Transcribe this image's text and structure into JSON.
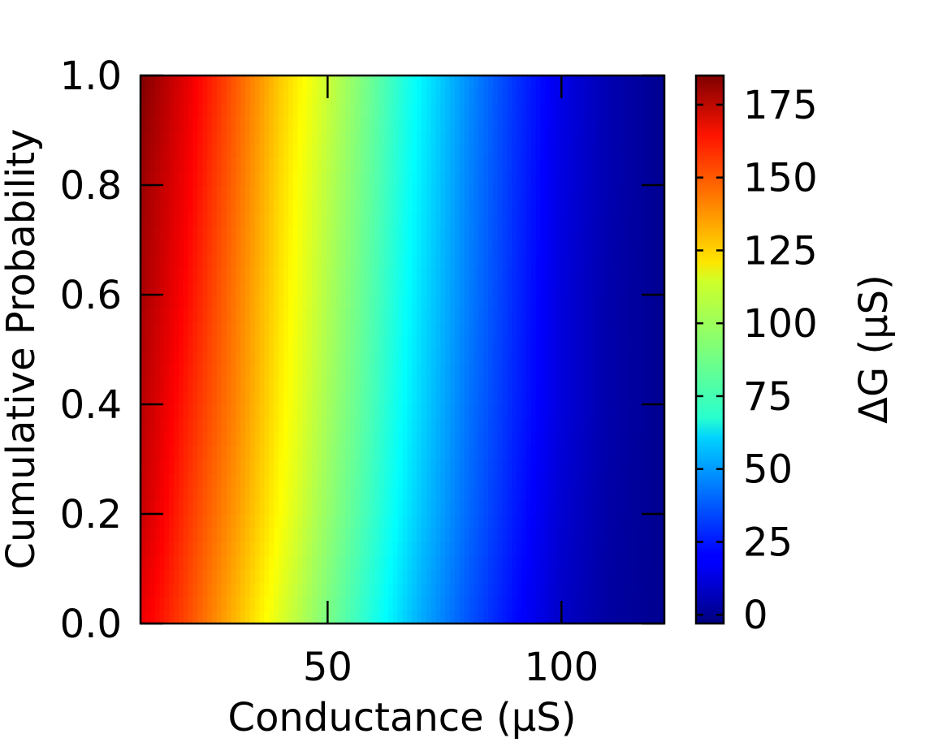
{
  "chart_data": {
    "type": "heatmap",
    "title": "",
    "xlabel": "Conductance (μS)",
    "ylabel": "Cumulative Probability",
    "colorbar_label": "ΔG (μS)",
    "xlim": [
      10,
      122
    ],
    "ylim": [
      0.0,
      1.0
    ],
    "x_ticks": [
      50,
      100
    ],
    "x_tick_labels": [
      "50",
      "100"
    ],
    "y_ticks": [
      0.0,
      0.2,
      0.4,
      0.6,
      0.8,
      1.0
    ],
    "y_tick_labels": [
      "0.0",
      "0.2",
      "0.4",
      "0.6",
      "0.8",
      "1.0"
    ],
    "colorbar_range": [
      -3,
      185
    ],
    "colorbar_ticks": [
      0,
      25,
      50,
      75,
      100,
      125,
      150,
      175
    ],
    "colorbar_tick_labels": [
      "0",
      "25",
      "50",
      "75",
      "100",
      "125",
      "150",
      "175"
    ],
    "colormap": "jet",
    "grid": false,
    "x": [
      10,
      20,
      30,
      40,
      50,
      60,
      70,
      80,
      90,
      100,
      110,
      122
    ],
    "y": [
      0.0,
      0.2,
      0.4,
      0.6,
      0.8,
      1.0
    ],
    "z": [
      [
        165,
        148,
        128,
        108,
        90,
        72,
        52,
        36,
        22,
        10,
        3,
        0
      ],
      [
        172,
        152,
        134,
        114,
        95,
        77,
        57,
        40,
        25,
        12,
        4,
        0
      ],
      [
        175,
        156,
        138,
        117,
        98,
        80,
        60,
        42,
        27,
        14,
        5,
        0
      ],
      [
        178,
        160,
        140,
        119,
        100,
        82,
        62,
        44,
        28,
        14,
        5,
        0
      ],
      [
        180,
        163,
        143,
        121,
        102,
        84,
        64,
        45,
        29,
        15,
        6,
        0
      ],
      [
        185,
        166,
        146,
        124,
        105,
        86,
        66,
        47,
        30,
        16,
        6,
        0
      ]
    ]
  }
}
